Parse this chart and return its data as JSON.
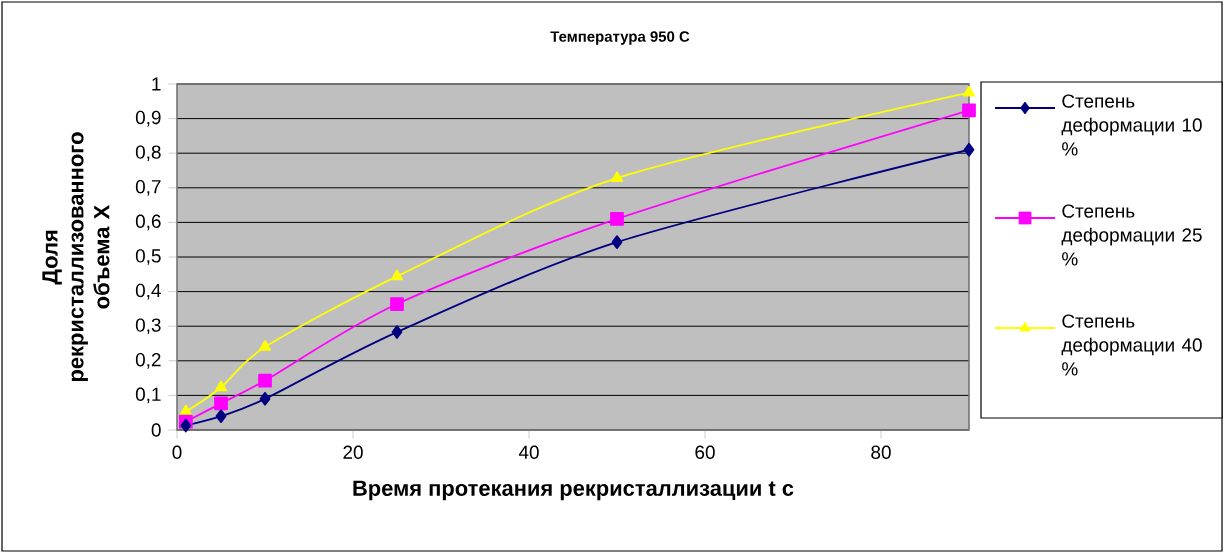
{
  "chart_data": {
    "type": "line",
    "title": "Температура 950 С",
    "xlabel": "Время протекания рекристаллизации t c",
    "ylabel": "Доля рекристаллизованного объема X",
    "x": [
      1,
      5,
      10,
      25,
      50,
      90
    ],
    "series": [
      {
        "name": "Степень деформации 10 %",
        "color": "#000080",
        "marker": "diamond",
        "values": [
          0.013,
          0.04,
          0.09,
          0.283,
          0.543,
          0.81
        ]
      },
      {
        "name": "Степень деформации 25 %",
        "color": "#ff00ff",
        "marker": "square",
        "values": [
          0.024,
          0.077,
          0.143,
          0.364,
          0.61,
          0.924
        ]
      },
      {
        "name": "Степень деформации 40 %",
        "color": "#ffff00",
        "marker": "triangle",
        "values": [
          0.053,
          0.123,
          0.24,
          0.444,
          0.728,
          0.975
        ]
      }
    ],
    "xlim": [
      0,
      90
    ],
    "xticks": [
      0,
      20,
      40,
      60,
      80
    ],
    "ylim": [
      0,
      1
    ],
    "yticks": [
      0,
      {
        "value": 0.1,
        "label": "0,1"
      },
      {
        "value": 0.2,
        "label": "0,2"
      },
      {
        "value": 0.3,
        "label": "0,3"
      },
      {
        "value": 0.4,
        "label": "0,4"
      },
      {
        "value": 0.5,
        "label": "0,5"
      },
      {
        "value": 0.6,
        "label": "0,6"
      },
      {
        "value": 0.7,
        "label": "0,7"
      },
      {
        "value": 0.8,
        "label": "0,8"
      },
      {
        "value": 0.9,
        "label": "0,9"
      },
      1
    ],
    "grid": "y",
    "legend": "right",
    "line_style": "solid"
  }
}
